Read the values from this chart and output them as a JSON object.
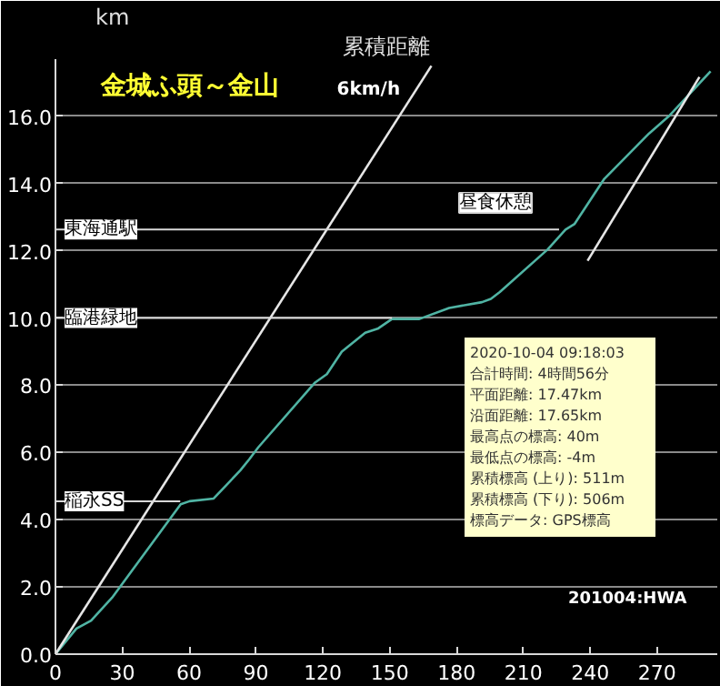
{
  "chart_data": {
    "type": "line",
    "title": "累積距離",
    "subtitle": "金城ふ頭～金山",
    "ylabel": "km",
    "xlim": [
      0,
      297
    ],
    "ylim": [
      0,
      17.7
    ],
    "xticks": [
      0,
      30,
      60,
      90,
      120,
      150,
      180,
      210,
      240,
      270
    ],
    "yticks": [
      {
        "value": 0,
        "label": "0.0"
      },
      {
        "value": 2,
        "label": "2.0"
      },
      {
        "value": 4,
        "label": "4.0"
      },
      {
        "value": 6,
        "label": "6.0"
      },
      {
        "value": 8,
        "label": "8.0"
      },
      {
        "value": 10,
        "label": "10.0"
      },
      {
        "value": 12,
        "label": "12.0"
      },
      {
        "value": 14,
        "label": "14.0"
      },
      {
        "value": 16,
        "label": "16.0"
      }
    ],
    "grid": "y",
    "legend": false,
    "marker": "none",
    "line_style": "solid",
    "series": [
      {
        "color": "#50b4a4",
        "x": [
          0,
          9.4,
          16,
          25.4,
          56.2,
          60.2,
          71,
          83,
          87,
          91,
          116.5,
          121.8,
          128.5,
          139,
          144.6,
          151,
          163.3,
          176.7,
          191.4,
          195.4,
          199.4,
          220.9,
          228.9,
          233,
          246.3,
          266.4,
          275.7,
          294
        ],
        "values": [
          0,
          0.76,
          1.0,
          1.68,
          4.46,
          4.55,
          4.63,
          5.47,
          5.8,
          6.15,
          8.08,
          8.33,
          9.0,
          9.56,
          9.68,
          9.97,
          9.97,
          10.3,
          10.47,
          10.57,
          10.77,
          12.04,
          12.63,
          12.8,
          14.14,
          15.49,
          16.03,
          17.34
        ]
      },
      {
        "name": "6km/h",
        "color": "#e6e6e6",
        "x": [
          0,
          168.7
        ],
        "values": [
          0,
          17.5
        ]
      },
      {
        "color": "#e6e6e6",
        "x": [
          238.8,
          289
        ],
        "values": [
          11.7,
          17.17
        ]
      }
    ],
    "annotations": [
      {
        "text": "東海通駅",
        "x": 226,
        "y": 12.63
      },
      {
        "text": "臨港緑地",
        "x": 151,
        "y": 10.0
      },
      {
        "text": "稲永SS",
        "x": 56,
        "y": 4.55
      },
      "昼食休憩",
      "2020-10-04 09:18:03",
      "合計時間: 4時間56分",
      "平面距離: 17.47km",
      "沿面距離: 17.65km",
      "最高点の標高: 40m",
      "最低点の標高: -4m",
      "累積標高 (上り): 511m",
      "累積標高 (下り): 506m",
      "標高データ: GPS標高",
      "201004:HWA"
    ]
  }
}
